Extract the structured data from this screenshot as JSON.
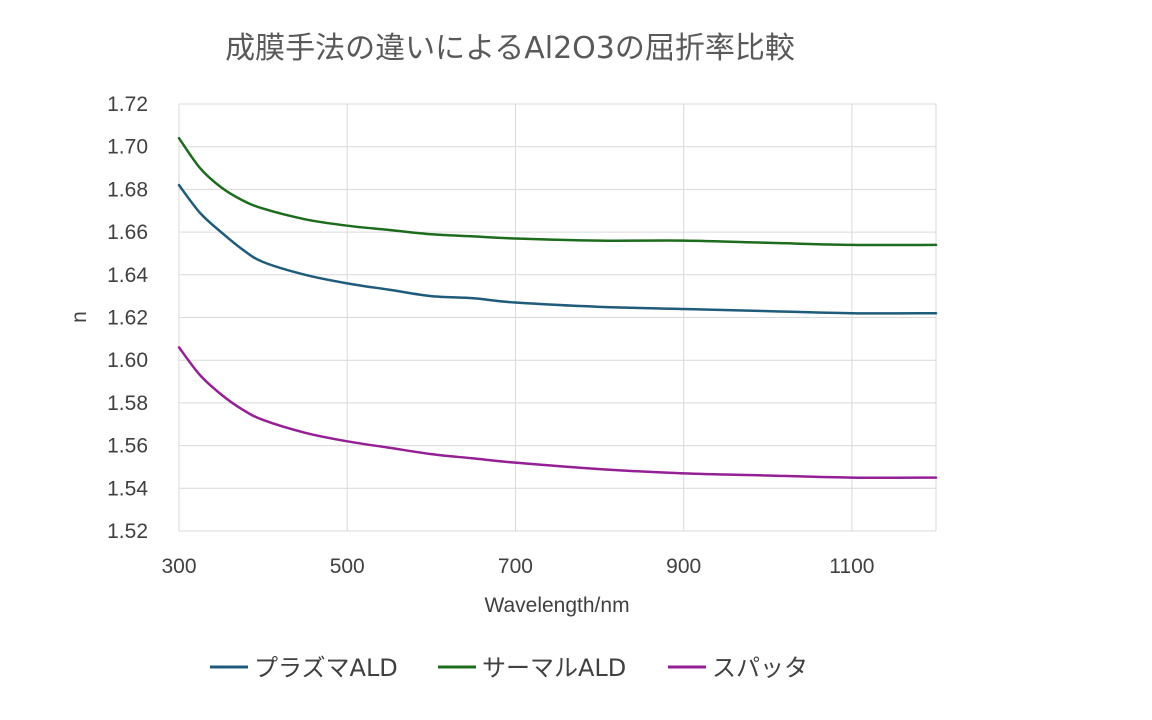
{
  "chart_data": {
    "type": "line",
    "title": "成膜手法の違いによるAl2O3の屈折率比較",
    "xlabel": "Wavelength/nm",
    "ylabel": "n",
    "xlim": [
      300,
      1200
    ],
    "ylim": [
      1.52,
      1.72
    ],
    "xticks": [
      "300",
      "500",
      "700",
      "900",
      "1100"
    ],
    "xtick_values": [
      300,
      500,
      700,
      900,
      1100
    ],
    "yticks": [
      "1.52",
      "1.54",
      "1.56",
      "1.58",
      "1.60",
      "1.62",
      "1.64",
      "1.66",
      "1.68",
      "1.70",
      "1.72"
    ],
    "grid": true,
    "legend_position": "bottom",
    "series": [
      {
        "name": "プラズマALD",
        "color": "#1f5b7a",
        "x": [
          300,
          325,
          350,
          375,
          400,
          450,
          500,
          550,
          600,
          650,
          700,
          800,
          900,
          1000,
          1100,
          1200
        ],
        "y": [
          1.682,
          1.669,
          1.66,
          1.652,
          1.646,
          1.64,
          1.636,
          1.633,
          1.63,
          1.629,
          1.627,
          1.625,
          1.624,
          1.623,
          1.622,
          1.622
        ]
      },
      {
        "name": "サーマルALD",
        "color": "#1d6b1d",
        "x": [
          300,
          325,
          350,
          375,
          400,
          450,
          500,
          550,
          600,
          650,
          700,
          800,
          900,
          1000,
          1100,
          1200
        ],
        "y": [
          1.704,
          1.69,
          1.681,
          1.675,
          1.671,
          1.666,
          1.663,
          1.661,
          1.659,
          1.658,
          1.657,
          1.656,
          1.656,
          1.655,
          1.654,
          1.654
        ]
      },
      {
        "name": "スパッタ",
        "color": "#951f95",
        "x": [
          300,
          325,
          350,
          375,
          400,
          450,
          500,
          550,
          600,
          650,
          700,
          800,
          900,
          1000,
          1100,
          1200
        ],
        "y": [
          1.606,
          1.593,
          1.584,
          1.577,
          1.572,
          1.566,
          1.562,
          1.559,
          1.556,
          1.554,
          1.552,
          1.549,
          1.547,
          1.546,
          1.545,
          1.545
        ]
      }
    ]
  }
}
